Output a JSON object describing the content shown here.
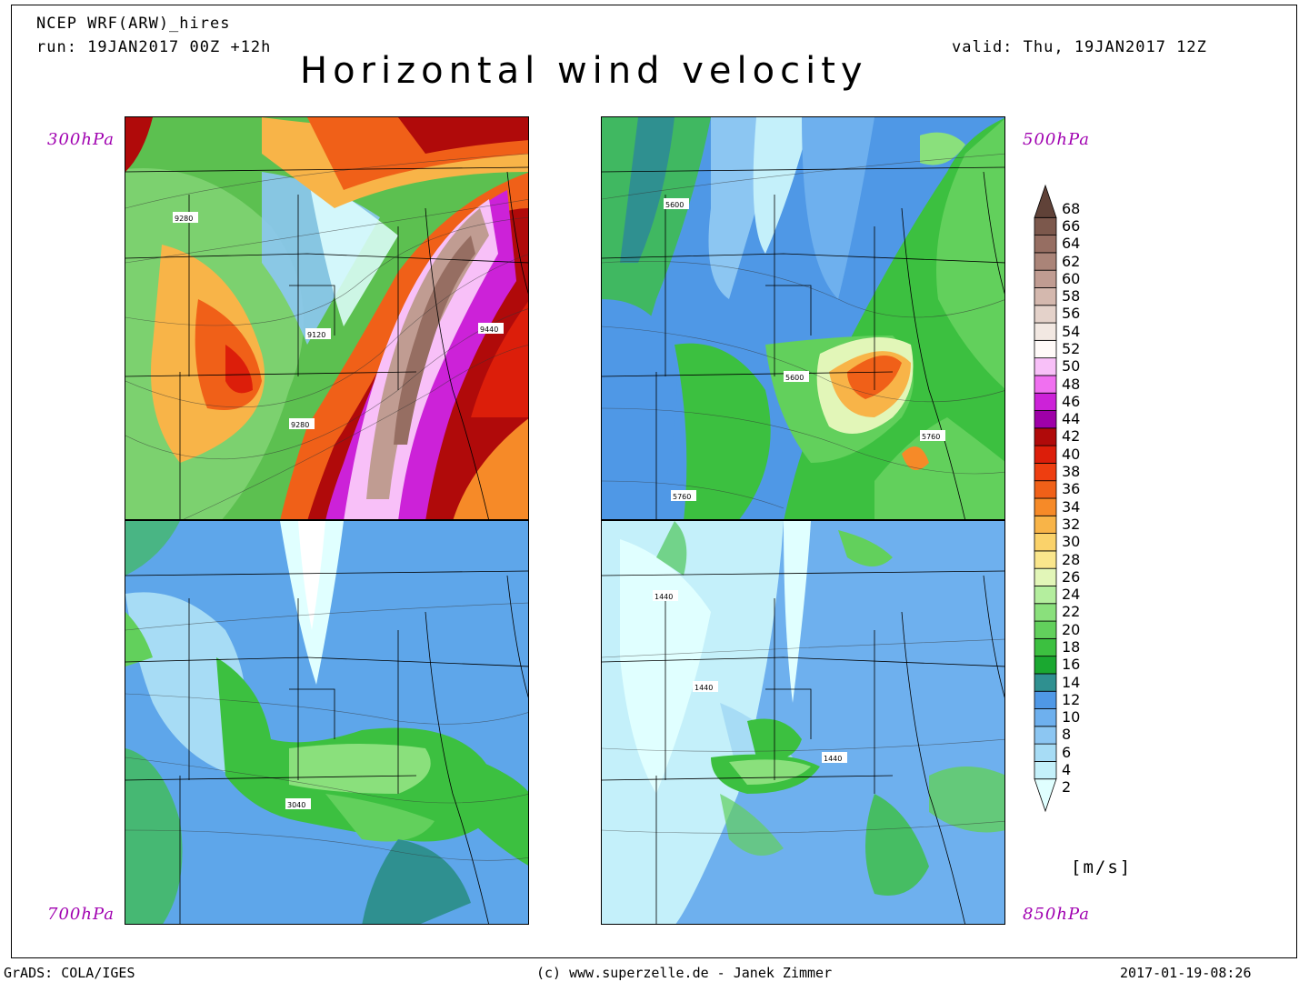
{
  "header": {
    "model": "NCEP WRF(ARW)_hires",
    "run": "run: 19JAN2017 00Z +12h",
    "valid": "valid: Thu, 19JAN2017 12Z",
    "title": "Horizontal wind velocity"
  },
  "panels": [
    {
      "id": "p300",
      "level": "300hPa",
      "contours": [
        {
          "label": "9280"
        },
        {
          "label": "9120"
        },
        {
          "label": "9440"
        },
        {
          "label": "9280"
        }
      ]
    },
    {
      "id": "p500",
      "level": "500hPa",
      "contours": [
        {
          "label": "5600"
        },
        {
          "label": "5600"
        },
        {
          "label": "5760"
        },
        {
          "label": "5760"
        }
      ]
    },
    {
      "id": "p700",
      "level": "700hPa",
      "contours": [
        {
          "label": "3040"
        }
      ]
    },
    {
      "id": "p850",
      "level": "850hPa",
      "contours": [
        {
          "label": "1440"
        },
        {
          "label": "1440"
        },
        {
          "label": "1440"
        }
      ]
    }
  ],
  "colorbar": {
    "unit": "[m/s]",
    "levels": [
      {
        "value": "2",
        "color": "#e0ffff"
      },
      {
        "value": "4",
        "color": "#c4f0fa"
      },
      {
        "value": "6",
        "color": "#a7dcf5"
      },
      {
        "value": "8",
        "color": "#8cc6f2"
      },
      {
        "value": "10",
        "color": "#6eb0ee"
      },
      {
        "value": "12",
        "color": "#4f98e6"
      },
      {
        "value": "14",
        "color": "#2f9090"
      },
      {
        "value": "16",
        "color": "#1aa830"
      },
      {
        "value": "18",
        "color": "#3cc040"
      },
      {
        "value": "20",
        "color": "#62d05c"
      },
      {
        "value": "22",
        "color": "#8ae07c"
      },
      {
        "value": "24",
        "color": "#b4ee9e"
      },
      {
        "value": "26",
        "color": "#e2f6b8"
      },
      {
        "value": "28",
        "color": "#fae68c"
      },
      {
        "value": "30",
        "color": "#fad26a"
      },
      {
        "value": "32",
        "color": "#f8b448"
      },
      {
        "value": "34",
        "color": "#f68a28"
      },
      {
        "value": "36",
        "color": "#f06018"
      },
      {
        "value": "38",
        "color": "#ee3e10"
      },
      {
        "value": "40",
        "color": "#dc1e0a"
      },
      {
        "value": "42",
        "color": "#b00a0a"
      },
      {
        "value": "44",
        "color": "#9e00a8"
      },
      {
        "value": "46",
        "color": "#cc22d8"
      },
      {
        "value": "48",
        "color": "#f070f0"
      },
      {
        "value": "50",
        "color": "#f8c0f8"
      },
      {
        "value": "52",
        "color": "#fffaf8"
      },
      {
        "value": "54",
        "color": "#f2e8e2"
      },
      {
        "value": "56",
        "color": "#e4d2ca"
      },
      {
        "value": "58",
        "color": "#d4b8ae"
      },
      {
        "value": "60",
        "color": "#c09c92"
      },
      {
        "value": "62",
        "color": "#aa8478"
      },
      {
        "value": "64",
        "color": "#966e62"
      },
      {
        "value": "66",
        "color": "#7c584c"
      },
      {
        "value": "68",
        "color": "#604238"
      }
    ]
  },
  "footer": {
    "left": "GrADS: COLA/IGES",
    "center": "(c) www.superzelle.de - Janek Zimmer",
    "right": "2017-01-19-08:26"
  }
}
